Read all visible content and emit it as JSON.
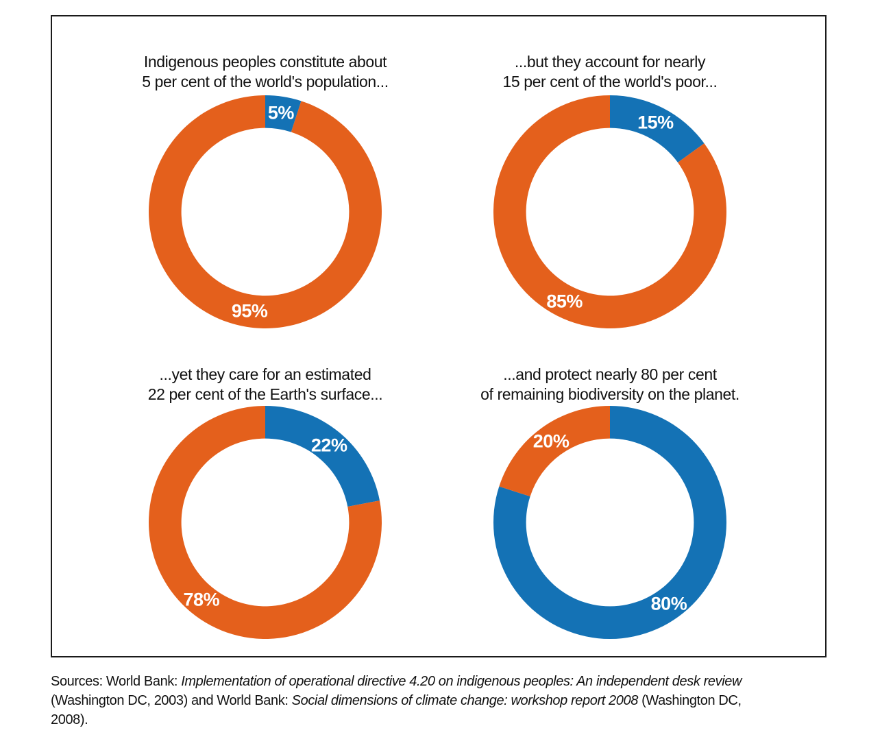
{
  "colors": {
    "orange": "#E4601C",
    "blue": "#1472B5",
    "slice_label_text": "#FFFFFF",
    "frame_border": "#1A1A1A",
    "text": "#111111"
  },
  "chart_data": [
    {
      "type": "donut",
      "title": "Indigenous peoples constitute about\n5 per cent of the world's population...",
      "start_angle_deg": 0,
      "direction": "clockwise",
      "inner_radius_ratio": 0.72,
      "slices": [
        {
          "label": "5%",
          "value": 5,
          "color": "blue"
        },
        {
          "label": "95%",
          "value": 95,
          "color": "orange"
        }
      ]
    },
    {
      "type": "donut",
      "title": "...but they account for nearly\n15 per cent of the world's poor...",
      "start_angle_deg": 0,
      "direction": "clockwise",
      "inner_radius_ratio": 0.72,
      "slices": [
        {
          "label": "15%",
          "value": 15,
          "color": "blue"
        },
        {
          "label": "85%",
          "value": 85,
          "color": "orange"
        }
      ]
    },
    {
      "type": "donut",
      "title": "...yet they care for an estimated\n22 per cent of the Earth's surface...",
      "start_angle_deg": 0,
      "direction": "clockwise",
      "inner_radius_ratio": 0.72,
      "slices": [
        {
          "label": "22%",
          "value": 22,
          "color": "blue"
        },
        {
          "label": "78%",
          "value": 78,
          "color": "orange"
        }
      ]
    },
    {
      "type": "donut",
      "title": "...and protect nearly 80 per cent\nof remaining biodiversity on the planet.",
      "start_angle_deg": 0,
      "direction": "clockwise",
      "inner_radius_ratio": 0.72,
      "slices": [
        {
          "label": "80%",
          "value": 80,
          "color": "blue"
        },
        {
          "label": "20%",
          "value": 20,
          "color": "orange"
        }
      ]
    }
  ],
  "source": {
    "lines": [
      {
        "segments": [
          {
            "text": "Sources: World Bank: ",
            "italic": false
          },
          {
            "text": "Implementation of operational directive 4.20 on indigenous peoples: An independent desk review",
            "italic": true
          }
        ]
      },
      {
        "segments": [
          {
            "text": "(Washington DC, 2003) and World Bank: ",
            "italic": false
          },
          {
            "text": "Social dimensions of climate change: workshop report 2008",
            "italic": true
          },
          {
            "text": " (Washington DC,",
            "italic": false
          }
        ]
      },
      {
        "segments": [
          {
            "text": "2008).",
            "italic": false
          }
        ]
      }
    ]
  }
}
